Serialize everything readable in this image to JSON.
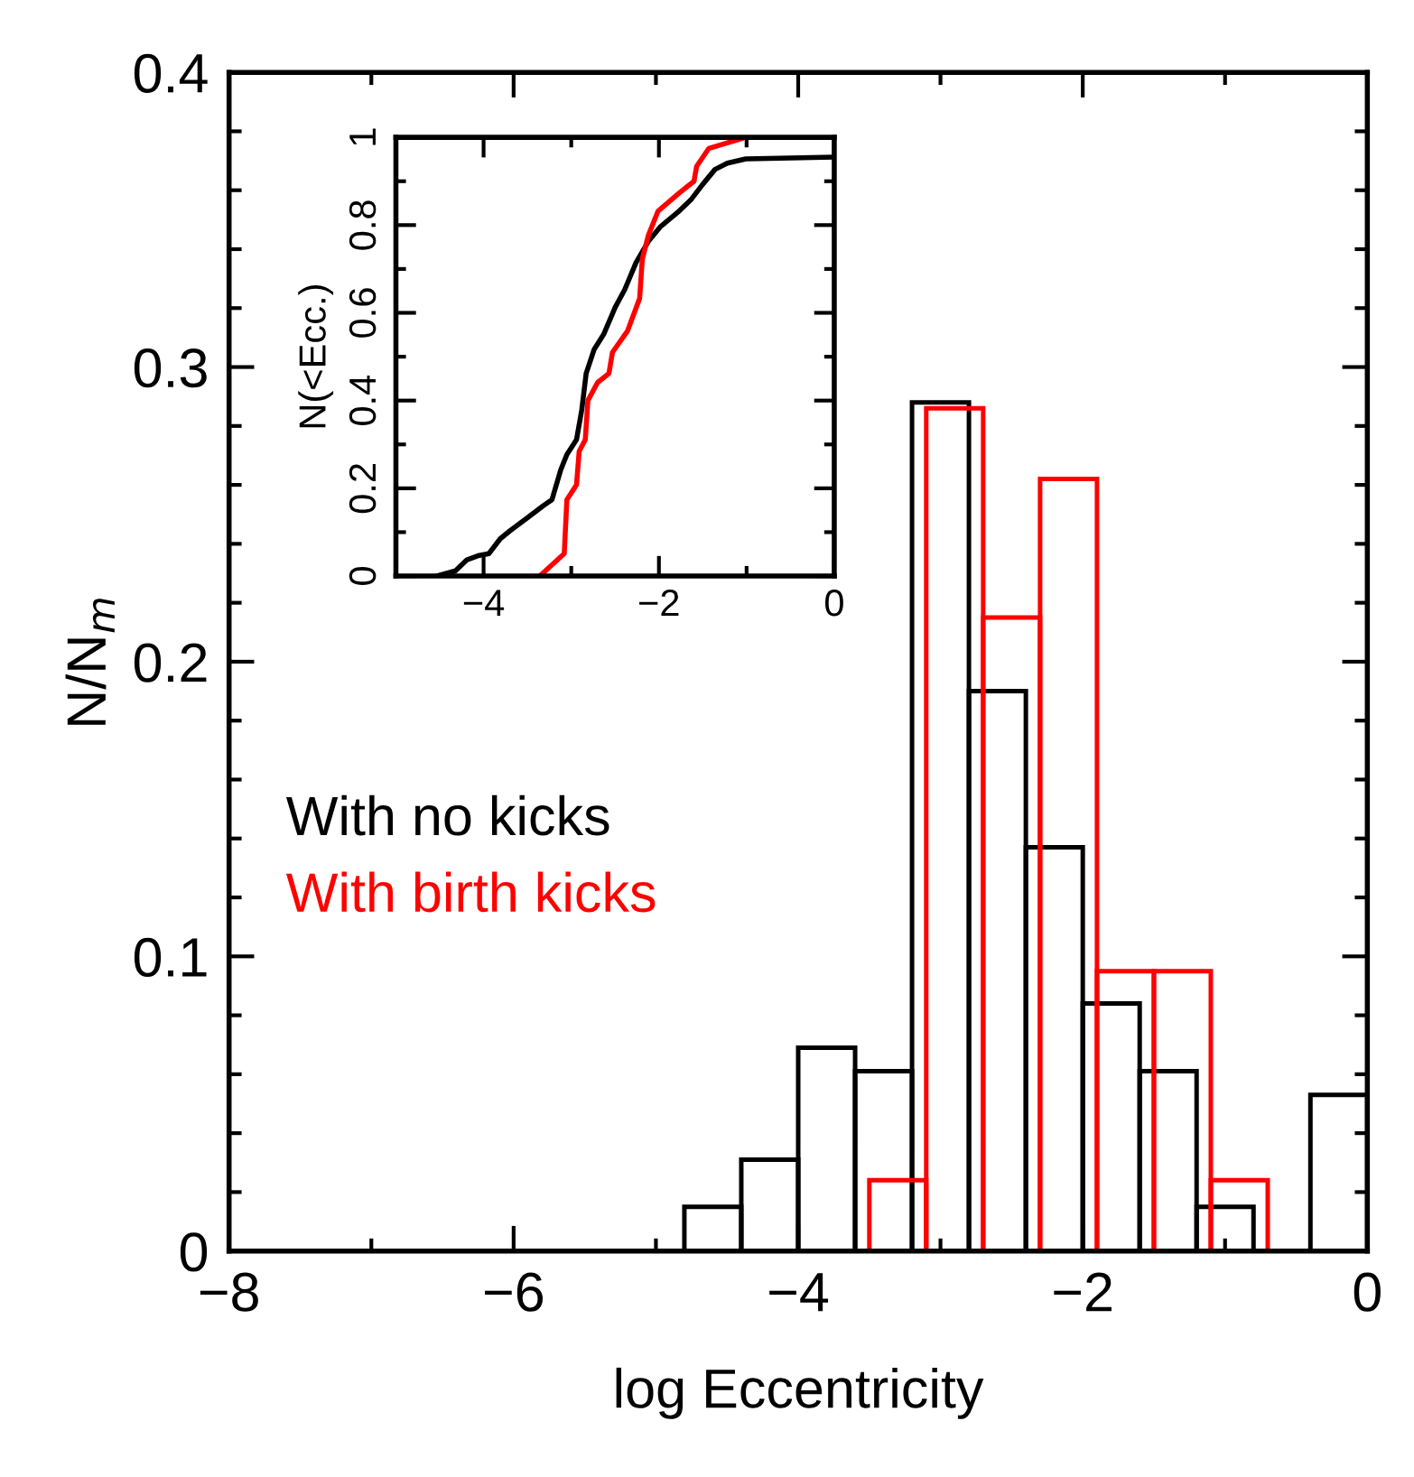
{
  "chart_data": [
    {
      "type": "bar",
      "xlabel": "log Eccentricity",
      "ylabel": "N/N$_{m}$",
      "xlim": [
        -8,
        0
      ],
      "ylim": [
        0,
        0.4
      ],
      "xticks": [
        -8,
        -6,
        -4,
        -2,
        0
      ],
      "yticks": [
        0,
        0.1,
        0.2,
        0.3,
        0.4
      ],
      "grid": false,
      "series": [
        {
          "name": "With no kicks",
          "color": "#000000",
          "x": [
            -4.6,
            -4.2,
            -3.8,
            -3.4,
            -3.0,
            -2.6,
            -2.2,
            -1.8,
            -1.4,
            -1.0,
            -0.6,
            -0.2
          ],
          "values": [
            0.015,
            0.031,
            0.069,
            0.061,
            0.288,
            0.19,
            0.137,
            0.084,
            0.061,
            0.015,
            0,
            0.053
          ]
        },
        {
          "name": "With birth kicks",
          "color": "#ff0000",
          "x": [
            -3.3,
            -2.9,
            -2.5,
            -2.1,
            -1.7,
            -1.3,
            -0.9
          ],
          "values": [
            0.024,
            0.286,
            0.215,
            0.262,
            0.095,
            0.095,
            0.024
          ]
        }
      ]
    },
    {
      "type": "line",
      "ylabel": "N(<Ecc.)",
      "xlim": [
        -5,
        0
      ],
      "ylim": [
        0,
        1
      ],
      "xticks": [
        -4,
        -2,
        0
      ],
      "yticks": [
        0,
        0.2,
        0.4,
        0.6,
        0.8,
        1
      ],
      "grid": false,
      "series": [
        {
          "color": "#000000",
          "x": [
            -4.53,
            -4.32,
            -4.19,
            -4.05,
            -3.94,
            -3.81,
            -3.7,
            -3.5,
            -3.32,
            -3.22,
            -3.12,
            -3.05,
            -2.94,
            -2.88,
            -2.83,
            -2.74,
            -2.63,
            -2.5,
            -2.39,
            -2.26,
            -2.12,
            -1.98,
            -1.77,
            -1.63,
            -1.5,
            -1.36,
            -1.22,
            -1.01,
            0
          ],
          "values": [
            0,
            0.012,
            0.037,
            0.047,
            0.051,
            0.085,
            0.103,
            0.133,
            0.16,
            0.174,
            0.242,
            0.277,
            0.311,
            0.379,
            0.462,
            0.516,
            0.551,
            0.612,
            0.653,
            0.715,
            0.763,
            0.797,
            0.832,
            0.859,
            0.893,
            0.927,
            0.941,
            0.951,
            0.955
          ]
        },
        {
          "color": "#ff0000",
          "x": [
            -3.36,
            -3.08,
            -3.05,
            -2.94,
            -2.91,
            -2.84,
            -2.81,
            -2.7,
            -2.57,
            -2.53,
            -2.36,
            -2.22,
            -2.19,
            -2.12,
            -2.01,
            -1.77,
            -1.6,
            -1.57,
            -1.43,
            -1.01
          ],
          "values": [
            0,
            0.051,
            0.174,
            0.208,
            0.284,
            0.311,
            0.4,
            0.441,
            0.462,
            0.51,
            0.558,
            0.633,
            0.722,
            0.777,
            0.832,
            0.873,
            0.9,
            0.934,
            0.975,
            1.0
          ]
        }
      ]
    }
  ]
}
